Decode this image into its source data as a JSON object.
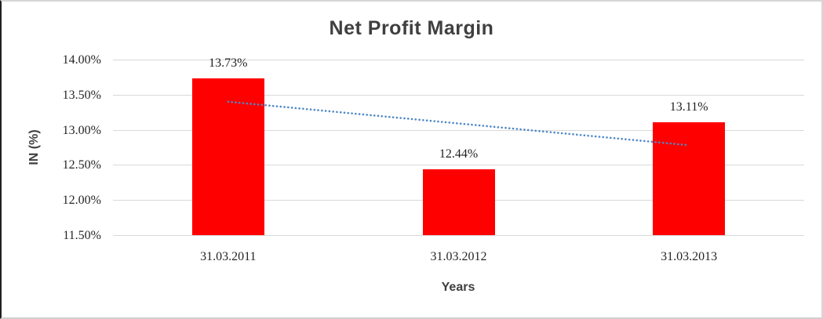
{
  "chart_data": {
    "type": "bar",
    "title": "Net Profit Margin",
    "xlabel": "Years",
    "ylabel": "IN (%)",
    "categories": [
      "31.03.2011",
      "31.03.2012",
      "31.03.2013"
    ],
    "values": [
      13.73,
      12.44,
      13.11
    ],
    "data_labels": [
      "13.73%",
      "12.44%",
      "13.11%"
    ],
    "ylim": [
      11.5,
      14.0
    ],
    "yticks": [
      {
        "value": 14.0,
        "label": "14.00%"
      },
      {
        "value": 13.5,
        "label": "13.50%"
      },
      {
        "value": 13.0,
        "label": "13.00%"
      },
      {
        "value": 12.5,
        "label": "12.50%"
      },
      {
        "value": 12.0,
        "label": "12.00%"
      },
      {
        "value": 11.5,
        "label": "11.50%"
      }
    ],
    "grid": true,
    "legend_position": "none",
    "colors": {
      "bar": "#ff0000",
      "gridline": "#d9d9d9",
      "trendline": "#4e87c8",
      "title_text": "#3f3f3f",
      "tick_text": "#262626"
    },
    "trendline": {
      "type": "linear",
      "style": "dotted",
      "start_value": 13.4,
      "end_value": 12.78
    }
  }
}
